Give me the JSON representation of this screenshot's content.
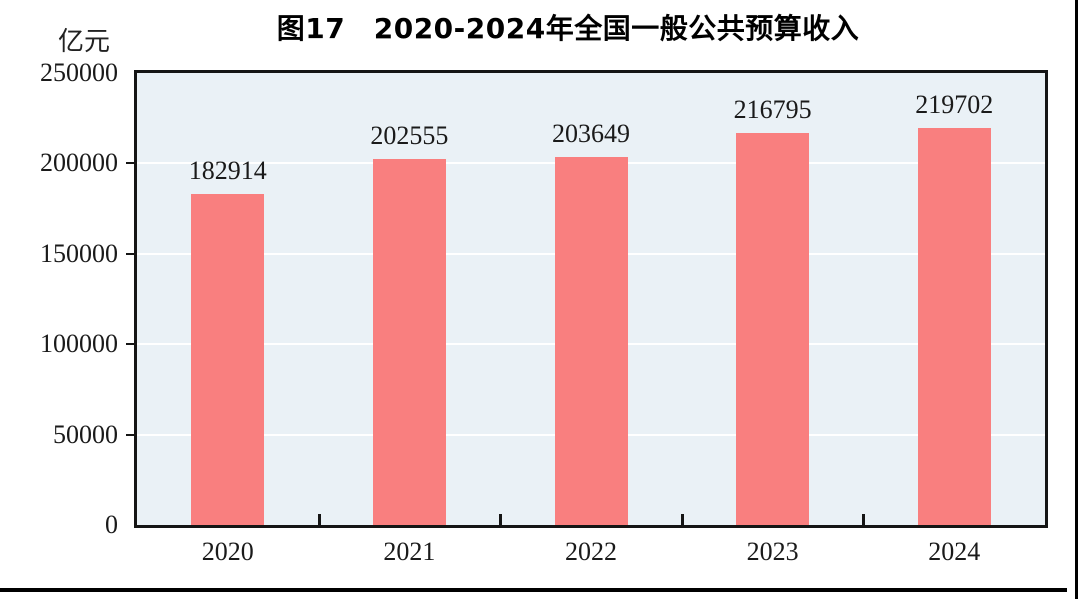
{
  "page": {
    "title": "图17　2020-2024年全国一般公共预算收入",
    "unit_label": "亿元"
  },
  "chart_data": {
    "type": "bar",
    "title": "图17　2020-2024年全国一般公共预算收入",
    "categories": [
      "2020",
      "2021",
      "2022",
      "2023",
      "2024"
    ],
    "values": [
      182914,
      202555,
      203649,
      216795,
      219702
    ],
    "xlabel": "",
    "ylabel": "亿元",
    "ylim": [
      0,
      250000
    ],
    "yticks": [
      0,
      50000,
      100000,
      150000,
      200000,
      250000
    ],
    "grid": true,
    "legend": "none",
    "data_labels": true,
    "colors": {
      "bar": "#F97F7F",
      "plot_background": "#EAF1F6",
      "gridline": "#FFFFFF",
      "axis_border": "#151515",
      "text": "#1A1A1A",
      "title_text": "#000000"
    }
  }
}
